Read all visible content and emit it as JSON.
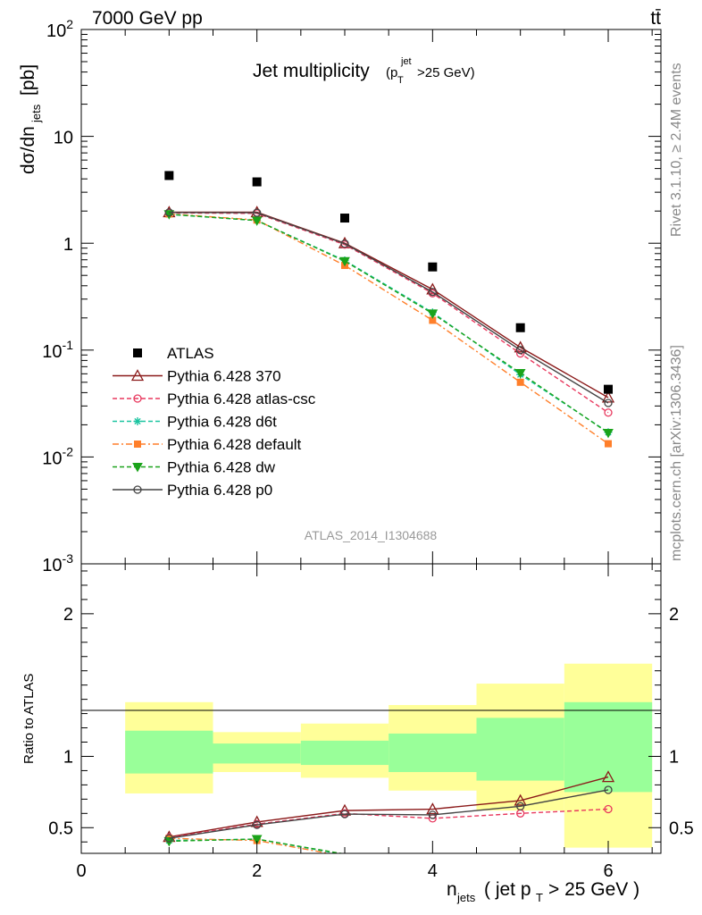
{
  "header": {
    "energy_label": "7000 GeV pp",
    "process_label": "tt̄"
  },
  "side_labels": {
    "rivet": "Rivet 3.1.10, ≥ 2.4M events",
    "mcplots": "mcplots.cern.ch [arXiv:1306.3436]"
  },
  "chart_data": {
    "type": "line",
    "title": "Jet multiplicity",
    "title_suffix": "(p_T^jet > 25 GeV)",
    "watermark": "ATLAS_2014_I1304688",
    "xlabel": "n_jets ( jet p_T > 25 GeV )",
    "ylabel": "dσ/dn_jets [pb]",
    "ratio_ylabel": "Ratio to ATLAS",
    "x": [
      1,
      2,
      3,
      4,
      5,
      6
    ],
    "xlim": [
      0,
      6.6
    ],
    "ylim": [
      0.001,
      100
    ],
    "yscale": "log",
    "ratio_ylim": [
      0.32,
      2.35
    ],
    "main_ytick_labels": [
      "10^-3",
      "10^-2",
      "10^-1",
      "1",
      "10",
      "10^2"
    ],
    "ratio_ytick_labels": [
      "0.5",
      "1",
      "2"
    ],
    "xtick_labels": [
      "0",
      "2",
      "4",
      "6"
    ],
    "data": {
      "name": "ATLAS",
      "color": "#000000",
      "values": [
        4.3,
        3.75,
        1.72,
        0.6,
        0.162,
        0.043
      ]
    },
    "series": [
      {
        "name": "Pythia 6.428 370",
        "color": "#8b1a1a",
        "dash": "solid",
        "marker": "triangle",
        "values": [
          1.95,
          1.95,
          1.0,
          0.37,
          0.106,
          0.036
        ],
        "ratio": [
          0.435,
          0.54,
          0.62,
          0.63,
          0.69,
          0.855
        ]
      },
      {
        "name": "Pythia 6.428 atlas-csc",
        "color": "#e8385e",
        "dash": "dashed",
        "marker": "circle",
        "values": [
          1.92,
          1.9,
          0.97,
          0.34,
          0.093,
          0.026
        ],
        "ratio": [
          0.43,
          0.525,
          0.6,
          0.565,
          0.6,
          0.63
        ]
      },
      {
        "name": "Pythia 6.428 d6t",
        "color": "#1bc4a0",
        "dash": "dashed",
        "marker": "star",
        "values": [
          1.86,
          1.63,
          0.69,
          0.225,
          0.059,
          0.017
        ],
        "ratio": [
          0.41,
          0.42,
          0.31,
          0.28,
          0.28,
          0.28
        ]
      },
      {
        "name": "Pythia 6.428 default",
        "color": "#ff7f2a",
        "dash": "dashdot",
        "marker": "square",
        "values": [
          1.88,
          1.65,
          0.62,
          0.19,
          0.05,
          0.0133
        ],
        "ratio": [
          0.425,
          0.41,
          0.3,
          0.28,
          0.28,
          0.28
        ]
      },
      {
        "name": "Pythia 6.428 dw",
        "color": "#1aa31a",
        "dash": "dashed",
        "marker": "triangle-down",
        "values": [
          1.87,
          1.63,
          0.68,
          0.22,
          0.061,
          0.0168
        ],
        "ratio": [
          0.405,
          0.42,
          0.315,
          0.28,
          0.28,
          0.28
        ]
      },
      {
        "name": "Pythia 6.428 p0",
        "color": "#444444",
        "dash": "solid",
        "marker": "circle",
        "values": [
          1.94,
          1.93,
          0.99,
          0.35,
          0.1,
          0.032
        ],
        "ratio": [
          0.425,
          0.52,
          0.595,
          0.59,
          0.65,
          0.765
        ]
      }
    ],
    "bands": {
      "bins": [
        [
          0.5,
          1.5
        ],
        [
          1.5,
          2.5
        ],
        [
          2.5,
          3.5
        ],
        [
          3.5,
          4.5
        ],
        [
          4.5,
          5.5
        ],
        [
          5.5,
          6.5
        ]
      ],
      "inner": [
        [
          0.88,
          1.18
        ],
        [
          0.95,
          1.09
        ],
        [
          0.94,
          1.11
        ],
        [
          0.89,
          1.16
        ],
        [
          0.83,
          1.27
        ],
        [
          0.75,
          1.38
        ]
      ],
      "outer": [
        [
          0.74,
          1.38
        ],
        [
          0.89,
          1.17
        ],
        [
          0.85,
          1.23
        ],
        [
          0.76,
          1.36
        ],
        [
          0.62,
          1.51
        ],
        [
          0.36,
          1.65
        ]
      ],
      "inner_color": "#99ff99",
      "outer_color": "#ffff99"
    },
    "legend_position": "lower-left",
    "grid": false
  }
}
